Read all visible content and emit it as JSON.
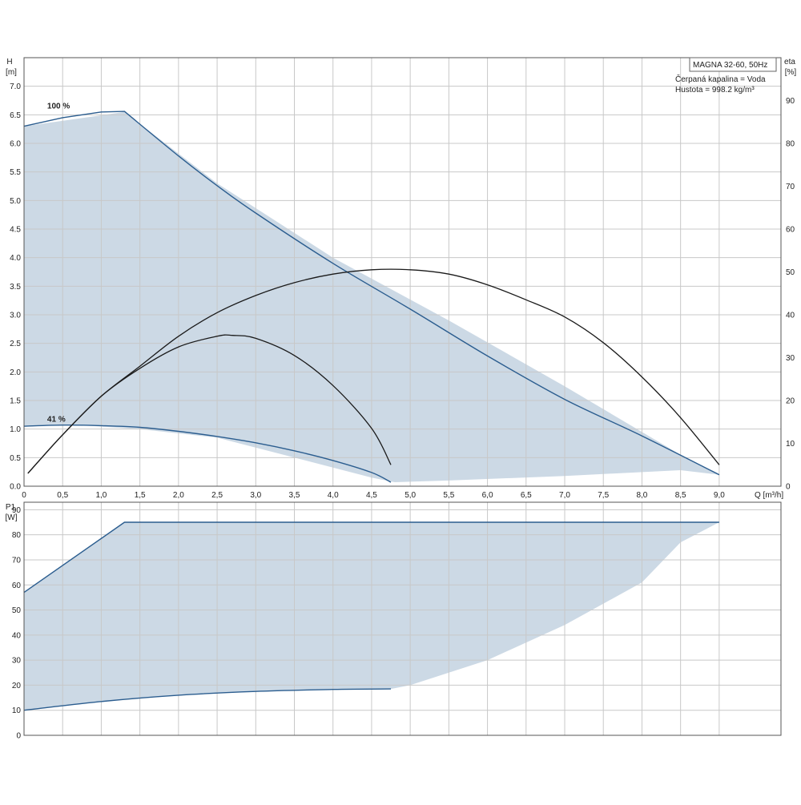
{
  "chart_data": [
    {
      "type": "line",
      "panel": "head-efficiency",
      "xlabel": "Q [m³/h]",
      "ylabel": "H\n[m]",
      "y2label": "eta\n[%]",
      "xlim": [
        0,
        9.8
      ],
      "ylim": [
        0,
        7.5
      ],
      "y2lim": [
        0,
        100
      ],
      "x_ticks": [
        "0",
        "0,5",
        "1,0",
        "1,5",
        "2,0",
        "2,5",
        "3,0",
        "3,5",
        "4,0",
        "4,5",
        "5,0",
        "5,5",
        "6,0",
        "6,5",
        "7,0",
        "7,5",
        "8,0",
        "8,5",
        "9,0"
      ],
      "y_ticks": [
        "0.0",
        "0.5",
        "1.0",
        "1.5",
        "2.0",
        "2.5",
        "3.0",
        "3.5",
        "4.0",
        "4.5",
        "5.0",
        "5.5",
        "6.0",
        "6.5",
        "7.0"
      ],
      "y2_ticks": [
        "0",
        "10",
        "20",
        "30",
        "40",
        "50",
        "60",
        "70",
        "80",
        "90"
      ],
      "grid": true,
      "legend_box": {
        "title": "MAGNA 32-60, 50Hz",
        "lines": [
          "Čerpaná kapalina = Voda",
          "Hustota = 998.2 kg/m³"
        ]
      },
      "region": {
        "name": "operating-range",
        "color": "#ccd9e5",
        "upper": {
          "x": [
            0,
            1.3,
            2.5,
            4.0,
            5.5,
            7.0,
            8.5,
            9.0
          ],
          "y": [
            6.3,
            6.55,
            5.3,
            4.0,
            2.9,
            1.75,
            0.55,
            0.2
          ]
        },
        "lower": {
          "x": [
            9.0,
            8.5,
            7.0,
            5.5,
            4.8,
            4.5,
            3.5,
            2.5,
            1.5,
            0.7,
            0
          ],
          "y": [
            0.2,
            0.28,
            0.18,
            0.1,
            0.07,
            0.15,
            0.5,
            0.85,
            1.0,
            1.07,
            1.05
          ]
        }
      },
      "series": [
        {
          "name": "100 %",
          "kind": "head",
          "color": "#2b5d8f",
          "x": [
            0,
            0.5,
            1.0,
            1.3,
            2.0,
            2.5,
            3.0,
            4.0,
            5.0,
            6.0,
            7.0,
            8.0,
            9.0
          ],
          "y": [
            6.3,
            6.45,
            6.55,
            6.56,
            5.78,
            5.26,
            4.78,
            3.9,
            3.1,
            2.28,
            1.52,
            0.88,
            0.2
          ]
        },
        {
          "name": "41 %",
          "kind": "head",
          "color": "#2b5d8f",
          "x": [
            0,
            0.5,
            1.0,
            1.5,
            2.0,
            2.5,
            3.0,
            3.5,
            4.0,
            4.5,
            4.75
          ],
          "y": [
            1.05,
            1.07,
            1.06,
            1.03,
            0.96,
            0.87,
            0.76,
            0.62,
            0.45,
            0.24,
            0.07
          ]
        },
        {
          "kind": "efficiency",
          "color": "#1a1a1a",
          "axis": "y2",
          "x": [
            0.05,
            0.5,
            1.0,
            1.5,
            2.0,
            2.5,
            3.0,
            3.5,
            4.0,
            4.5,
            5.0,
            5.5,
            6.0,
            6.5,
            7.0,
            7.5,
            8.0,
            8.5,
            9.0
          ],
          "y": [
            3,
            12,
            21,
            28,
            35,
            40.5,
            44.5,
            47.5,
            49.5,
            50.5,
            50.5,
            49.5,
            47,
            43.5,
            39.5,
            33.5,
            25.5,
            16,
            5
          ]
        },
        {
          "kind": "efficiency",
          "color": "#1a1a1a",
          "axis": "y2",
          "x": [
            0.05,
            0.5,
            1.0,
            1.5,
            2.0,
            2.5,
            2.7,
            3.0,
            3.5,
            4.0,
            4.5,
            4.75
          ],
          "y": [
            3,
            12,
            21,
            27.5,
            32.5,
            35,
            35.2,
            34.5,
            30.5,
            23.5,
            13.5,
            5
          ]
        }
      ],
      "labels": [
        {
          "text": "100 %",
          "x": 0.3,
          "y": 6.58
        },
        {
          "text": "41 %",
          "x": 0.3,
          "y": 1.1
        }
      ]
    },
    {
      "type": "line",
      "panel": "power",
      "xlabel": "",
      "ylabel": "P1\n[W]",
      "xlim": [
        0,
        9.8
      ],
      "ylim": [
        0,
        93
      ],
      "y_ticks": [
        "0",
        "10",
        "20",
        "30",
        "40",
        "50",
        "60",
        "70",
        "80",
        "90"
      ],
      "grid": true,
      "region": {
        "name": "power-range",
        "color": "#ccd9e5",
        "upper": {
          "x": [
            0,
            1.3,
            9.0
          ],
          "y": [
            57,
            85,
            85
          ]
        },
        "lower": {
          "x": [
            9.0,
            8.5,
            8.0,
            7.0,
            6.0,
            5.0,
            4.75,
            4.0,
            3.0,
            2.0,
            1.0,
            0
          ],
          "y": [
            85,
            77,
            61,
            44,
            30,
            20,
            18.5,
            18.3,
            17.5,
            16,
            13.5,
            10
          ]
        }
      },
      "series": [
        {
          "name": "100 %",
          "kind": "power",
          "color": "#2b5d8f",
          "x": [
            0,
            1.3,
            9.0
          ],
          "y": [
            57,
            85,
            85
          ]
        },
        {
          "name": "41 %",
          "kind": "power",
          "color": "#2b5d8f",
          "x": [
            0,
            1.0,
            2.0,
            3.0,
            4.0,
            4.75
          ],
          "y": [
            10,
            13.5,
            16,
            17.5,
            18.3,
            18.5
          ]
        }
      ]
    }
  ]
}
